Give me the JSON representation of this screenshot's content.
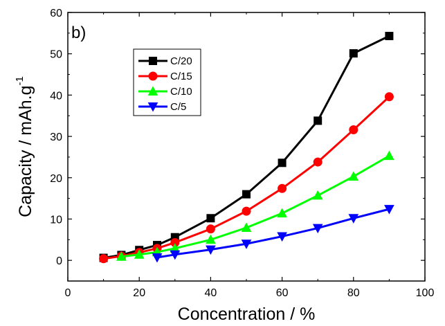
{
  "chart_data": {
    "type": "line",
    "panel_label": "b)",
    "xlabel": "Concentration / %",
    "ylabel": "Capacity / mAh.g",
    "ylabel_superscript": "-1",
    "xlim": [
      0,
      100
    ],
    "ylim": [
      -5,
      60
    ],
    "x_ticks": [
      0,
      20,
      40,
      60,
      80,
      100
    ],
    "y_ticks": [
      0,
      10,
      20,
      30,
      40,
      50,
      60
    ],
    "legend_position": "upper-left",
    "grid": false,
    "series": [
      {
        "name": "C/20",
        "color": "#000000",
        "marker": "square",
        "points": [
          [
            10,
            0.6
          ],
          [
            15,
            1.3
          ],
          [
            20,
            2.5
          ],
          [
            25,
            3.7
          ],
          [
            30,
            5.6
          ],
          [
            40,
            10.2
          ],
          [
            50,
            16.0
          ],
          [
            60,
            23.6
          ],
          [
            70,
            33.8
          ],
          [
            80,
            50.1
          ],
          [
            90,
            54.3
          ]
        ]
      },
      {
        "name": "C/15",
        "color": "#ff0000",
        "marker": "circle",
        "points": [
          [
            10,
            0.4
          ],
          [
            15,
            1.0
          ],
          [
            20,
            1.9
          ],
          [
            25,
            2.9
          ],
          [
            30,
            4.3
          ],
          [
            40,
            7.6
          ],
          [
            50,
            11.9
          ],
          [
            60,
            17.4
          ],
          [
            70,
            23.8
          ],
          [
            80,
            31.6
          ],
          [
            90,
            39.6
          ]
        ]
      },
      {
        "name": "C/10",
        "color": "#00ff00",
        "marker": "triangle-up",
        "points": [
          [
            15,
            0.9
          ],
          [
            20,
            1.4
          ],
          [
            25,
            2.0
          ],
          [
            30,
            2.9
          ],
          [
            40,
            5.0
          ],
          [
            50,
            7.9
          ],
          [
            60,
            11.4
          ],
          [
            70,
            15.7
          ],
          [
            80,
            20.3
          ],
          [
            90,
            25.3
          ]
        ]
      },
      {
        "name": "C/5",
        "color": "#0000ff",
        "marker": "triangle-down",
        "points": [
          [
            25,
            0.7
          ],
          [
            30,
            1.4
          ],
          [
            40,
            2.6
          ],
          [
            50,
            4.0
          ],
          [
            60,
            5.8
          ],
          [
            70,
            7.8
          ],
          [
            80,
            10.2
          ],
          [
            90,
            12.4
          ]
        ]
      }
    ]
  }
}
